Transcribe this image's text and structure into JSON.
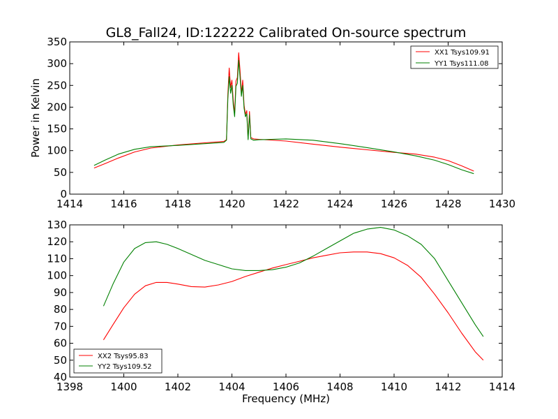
{
  "chart_data": [
    {
      "type": "line",
      "title": "GL8_Fall24, ID:122222 Calibrated On-source spectrum",
      "xlabel": "",
      "ylabel": "Power in Kelvin",
      "xlim": [
        1414,
        1430
      ],
      "ylim": [
        0,
        350
      ],
      "xticks": [
        "1414",
        "1416",
        "1418",
        "1420",
        "1422",
        "1424",
        "1426",
        "1428",
        "1430"
      ],
      "yticks": [
        "0",
        "50",
        "100",
        "150",
        "200",
        "250",
        "300",
        "350"
      ],
      "grid": false,
      "legend_position": "top-right",
      "series": [
        {
          "name": "XX1 Tsys109.91",
          "color": "#ff0000",
          "x": [
            1414.9,
            1415.3,
            1415.8,
            1416.4,
            1417.0,
            1418.0,
            1419.0,
            1419.7,
            1419.8,
            1419.85,
            1419.9,
            1419.95,
            1420.0,
            1420.05,
            1420.1,
            1420.15,
            1420.2,
            1420.25,
            1420.3,
            1420.35,
            1420.4,
            1420.45,
            1420.5,
            1420.55,
            1420.6,
            1420.65,
            1420.7,
            1420.8,
            1421.0,
            1422.0,
            1423.0,
            1424.0,
            1425.0,
            1426.0,
            1426.8,
            1427.5,
            1428.0,
            1428.5,
            1428.95
          ],
          "y": [
            60,
            70,
            83,
            97,
            106,
            113,
            118,
            121,
            125,
            230,
            290,
            245,
            262,
            215,
            185,
            260,
            268,
            325,
            285,
            232,
            262,
            205,
            183,
            192,
            128,
            190,
            130,
            127,
            126,
            122,
            115,
            108,
            102,
            96,
            92,
            85,
            77,
            65,
            53
          ]
        },
        {
          "name": "YY1 Tsys111.08",
          "color": "#008000",
          "x": [
            1414.9,
            1415.3,
            1415.8,
            1416.4,
            1417.0,
            1418.0,
            1419.0,
            1419.7,
            1419.8,
            1419.85,
            1419.9,
            1419.95,
            1420.0,
            1420.05,
            1420.1,
            1420.15,
            1420.2,
            1420.25,
            1420.3,
            1420.35,
            1420.4,
            1420.45,
            1420.5,
            1420.55,
            1420.6,
            1420.65,
            1420.7,
            1420.8,
            1421.0,
            1422.0,
            1423.0,
            1424.0,
            1425.0,
            1426.0,
            1426.8,
            1427.5,
            1428.0,
            1428.5,
            1428.95
          ],
          "y": [
            66,
            78,
            92,
            103,
            109,
            112,
            116,
            119,
            124,
            220,
            270,
            232,
            250,
            205,
            178,
            248,
            255,
            308,
            270,
            225,
            250,
            198,
            178,
            185,
            125,
            182,
            127,
            124,
            125,
            127,
            124,
            116,
            107,
            97,
            88,
            78,
            68,
            56,
            47
          ]
        }
      ]
    },
    {
      "type": "line",
      "title": "",
      "xlabel": "Frequency (MHz)",
      "ylabel": "",
      "xlim": [
        1398,
        1414
      ],
      "ylim": [
        40,
        130
      ],
      "xticks": [
        "1398",
        "1400",
        "1402",
        "1404",
        "1406",
        "1408",
        "1410",
        "1412",
        "1414"
      ],
      "yticks": [
        "40",
        "50",
        "60",
        "70",
        "80",
        "90",
        "100",
        "110",
        "120",
        "130"
      ],
      "grid": false,
      "legend_position": "bottom-left",
      "series": [
        {
          "name": "XX2 Tsys95.83",
          "color": "#ff0000",
          "x": [
            1399.25,
            1399.6,
            1400.0,
            1400.4,
            1400.8,
            1401.2,
            1401.6,
            1402.0,
            1402.5,
            1403.0,
            1403.5,
            1404.0,
            1404.5,
            1405.0,
            1405.5,
            1406.0,
            1406.5,
            1407.0,
            1407.5,
            1408.0,
            1408.5,
            1409.0,
            1409.5,
            1410.0,
            1410.5,
            1411.0,
            1411.5,
            1412.0,
            1412.5,
            1413.0,
            1413.3
          ],
          "y": [
            62,
            71,
            81,
            89,
            94,
            96,
            96,
            95,
            93.5,
            93.2,
            94.5,
            96.5,
            99.5,
            102,
            104.5,
            106.5,
            108.5,
            110.5,
            112,
            113.5,
            114,
            114,
            113,
            110.5,
            106,
            99,
            89,
            78,
            66,
            55,
            50
          ]
        },
        {
          "name": "YY2 Tsys109.52",
          "color": "#008000",
          "x": [
            1399.25,
            1399.6,
            1400.0,
            1400.4,
            1400.8,
            1401.2,
            1401.6,
            1402.0,
            1402.5,
            1403.0,
            1403.5,
            1404.0,
            1404.5,
            1405.0,
            1405.5,
            1406.0,
            1406.5,
            1407.0,
            1407.5,
            1408.0,
            1408.5,
            1409.0,
            1409.5,
            1410.0,
            1410.5,
            1411.0,
            1411.5,
            1412.0,
            1412.5,
            1413.0,
            1413.3
          ],
          "y": [
            82,
            95,
            108,
            116,
            119.5,
            120,
            118.5,
            116,
            112.5,
            109,
            106.5,
            104,
            103,
            103,
            103.5,
            105,
            107.5,
            111.5,
            116,
            120.5,
            125,
            127.5,
            128.5,
            127,
            123.5,
            118.5,
            110,
            97,
            84,
            71,
            64
          ]
        }
      ]
    }
  ]
}
